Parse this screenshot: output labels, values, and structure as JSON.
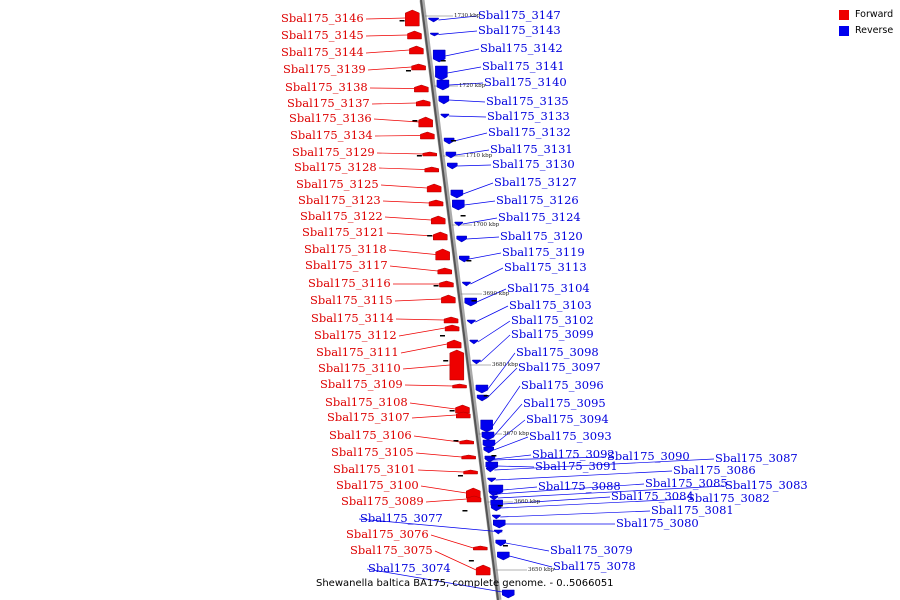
{
  "caption": "Shewanella baltica BA175, complete genome. - 0..5066051",
  "legend": {
    "forward_label": "Forward",
    "reverse_label": "Reverse",
    "forward_color": "#ee0000",
    "reverse_color": "#0000ee"
  },
  "ticks": [
    "1730 kbp",
    "1720 kbp",
    "1710 kbp",
    "1700 kbp",
    "3690 kbp",
    "3680 kbp",
    "3670 kbp",
    "3660 kbp",
    "3650 kbp"
  ],
  "forward_genes": [
    "Sbal175_3146",
    "Sbal175_3145",
    "Sbal175_3144",
    "Sbal175_3139",
    "Sbal175_3138",
    "Sbal175_3137",
    "Sbal175_3136",
    "Sbal175_3134",
    "Sbal175_3129",
    "Sbal175_3128",
    "Sbal175_3125",
    "Sbal175_3123",
    "Sbal175_3122",
    "Sbal175_3121",
    "Sbal175_3118",
    "Sbal175_3117",
    "Sbal175_3116",
    "Sbal175_3115",
    "Sbal175_3114",
    "Sbal175_3112",
    "Sbal175_3111",
    "Sbal175_3110",
    "Sbal175_3109",
    "Sbal175_3108",
    "Sbal175_3107",
    "Sbal175_3106",
    "Sbal175_3105",
    "Sbal175_3101",
    "Sbal175_3100",
    "Sbal175_3089",
    "Sbal175_3076",
    "Sbal175_3075"
  ],
  "reverse_genes": [
    "Sbal175_3147",
    "Sbal175_3143",
    "Sbal175_3142",
    "Sbal175_3141",
    "Sbal175_3140",
    "Sbal175_3135",
    "Sbal175_3133",
    "Sbal175_3132",
    "Sbal175_3131",
    "Sbal175_3130",
    "Sbal175_3127",
    "Sbal175_3126",
    "Sbal175_3124",
    "Sbal175_3120",
    "Sbal175_3119",
    "Sbal175_3113",
    "Sbal175_3104",
    "Sbal175_3103",
    "Sbal175_3102",
    "Sbal175_3099",
    "Sbal175_3098",
    "Sbal175_3097",
    "Sbal175_3096",
    "Sbal175_3095",
    "Sbal175_3094",
    "Sbal175_3093",
    "Sbal175_3092",
    "Sbal175_3090",
    "Sbal175_3091",
    "Sbal175_3087",
    "Sbal175_3086",
    "Sbal175_3088",
    "Sbal175_3085",
    "Sbal175_3083",
    "Sbal175_3084",
    "Sbal175_3082",
    "Sbal175_3081",
    "Sbal175_3080",
    "Sbal175_3079",
    "Sbal175_3078",
    "Sbal175_3077",
    "Sbal175_3074"
  ]
}
